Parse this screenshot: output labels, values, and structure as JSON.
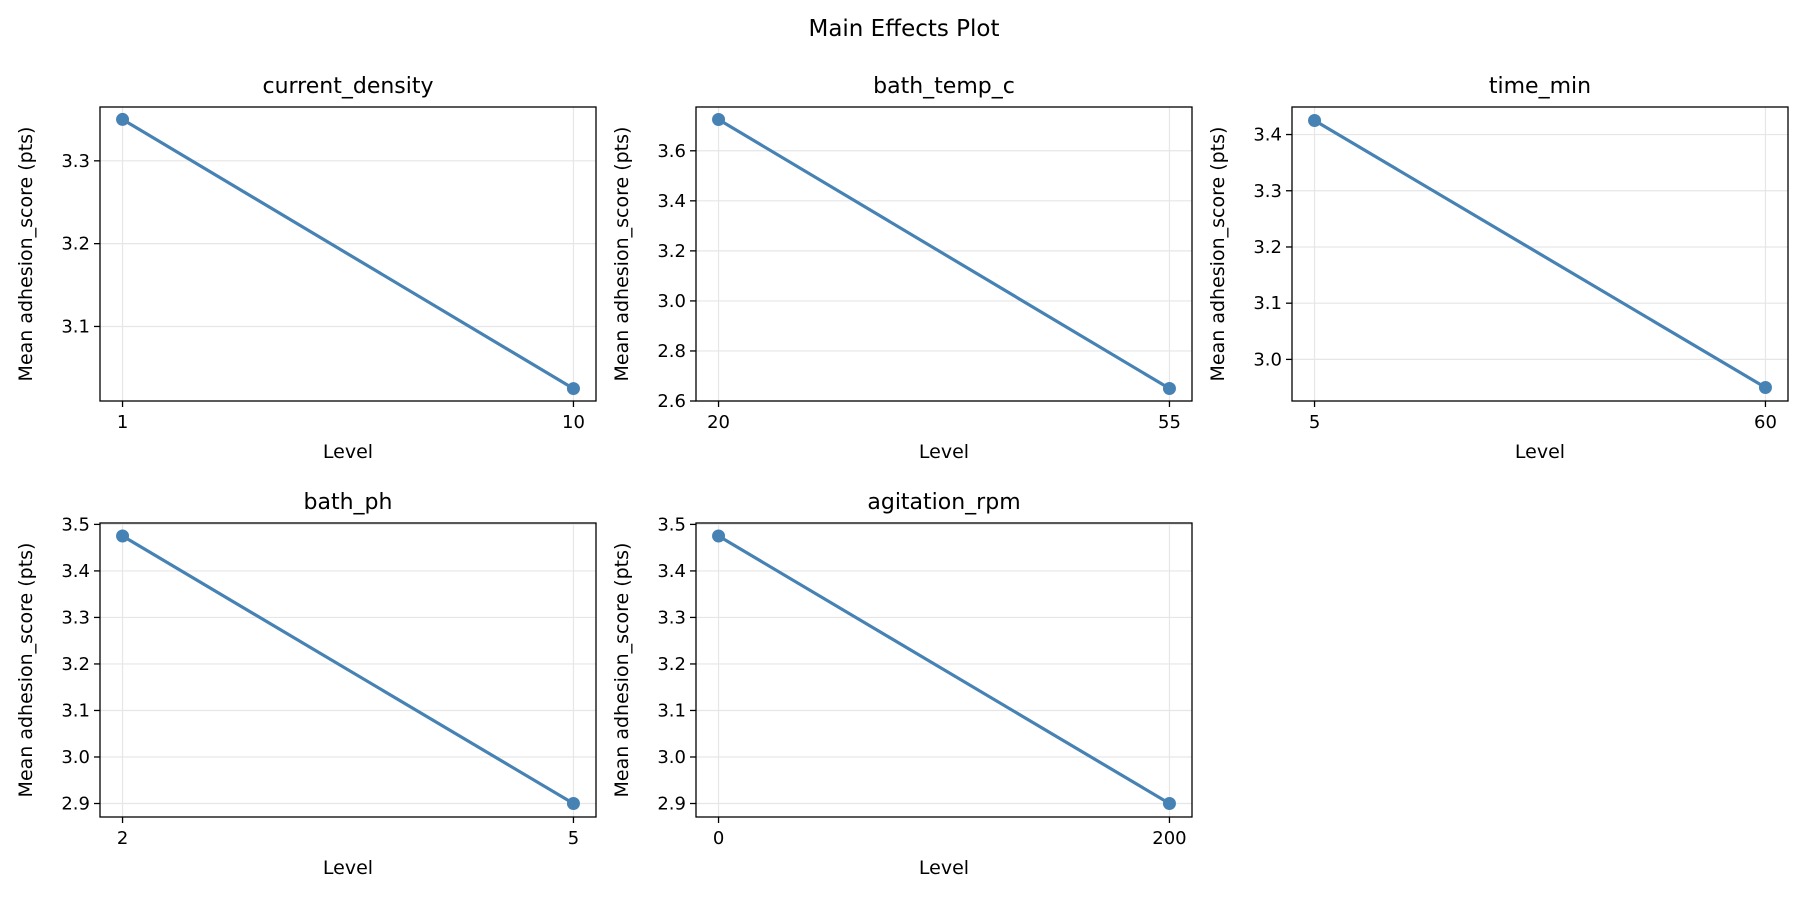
{
  "figure": {
    "title": "Main Effects Plot"
  },
  "colors": {
    "series": "#4682b4"
  },
  "chart_data": [
    {
      "type": "line",
      "title": "current_density",
      "xlabel": "Level",
      "ylabel": "Mean adhesion_score (pts)",
      "x": [
        1,
        10
      ],
      "x_ticks": [
        "1",
        "10"
      ],
      "values": [
        3.35,
        3.025
      ],
      "ylim": [
        3.01,
        3.365
      ],
      "y_ticks": [
        3.1,
        3.2,
        3.3
      ],
      "y_tick_labels": [
        "3.1",
        "3.2",
        "3.3"
      ],
      "grid": true
    },
    {
      "type": "line",
      "title": "bath_temp_c",
      "xlabel": "Level",
      "ylabel": "Mean adhesion_score (pts)",
      "x": [
        20,
        55
      ],
      "x_ticks": [
        "20",
        "55"
      ],
      "values": [
        3.725,
        2.65
      ],
      "ylim": [
        2.6,
        3.775
      ],
      "y_ticks": [
        2.6,
        2.8,
        3.0,
        3.2,
        3.4,
        3.6
      ],
      "y_tick_labels": [
        "2.6",
        "2.8",
        "3.0",
        "3.2",
        "3.4",
        "3.6"
      ],
      "grid": true
    },
    {
      "type": "line",
      "title": "time_min",
      "xlabel": "Level",
      "ylabel": "Mean adhesion_score (pts)",
      "x": [
        5,
        60
      ],
      "x_ticks": [
        "5",
        "60"
      ],
      "values": [
        3.425,
        2.95
      ],
      "ylim": [
        2.926,
        3.449
      ],
      "y_ticks": [
        3.0,
        3.1,
        3.2,
        3.3,
        3.4
      ],
      "y_tick_labels": [
        "3.0",
        "3.1",
        "3.2",
        "3.3",
        "3.4"
      ],
      "grid": true
    },
    {
      "type": "line",
      "title": "bath_ph",
      "xlabel": "Level",
      "ylabel": "Mean adhesion_score (pts)",
      "x": [
        2,
        5
      ],
      "x_ticks": [
        "2",
        "5"
      ],
      "values": [
        3.475,
        2.9
      ],
      "ylim": [
        2.871,
        3.503
      ],
      "y_ticks": [
        2.9,
        3.0,
        3.1,
        3.2,
        3.3,
        3.4,
        3.5
      ],
      "y_tick_labels": [
        "2.9",
        "3.0",
        "3.1",
        "3.2",
        "3.3",
        "3.4",
        "3.5"
      ],
      "grid": true
    },
    {
      "type": "line",
      "title": "agitation_rpm",
      "xlabel": "Level",
      "ylabel": "Mean adhesion_score (pts)",
      "x": [
        0,
        200
      ],
      "x_ticks": [
        "0",
        "200"
      ],
      "values": [
        3.475,
        2.9
      ],
      "ylim": [
        2.871,
        3.503
      ],
      "y_ticks": [
        2.9,
        3.0,
        3.1,
        3.2,
        3.3,
        3.4,
        3.5
      ],
      "y_tick_labels": [
        "2.9",
        "3.0",
        "3.1",
        "3.2",
        "3.3",
        "3.4",
        "3.5"
      ],
      "grid": true
    }
  ]
}
